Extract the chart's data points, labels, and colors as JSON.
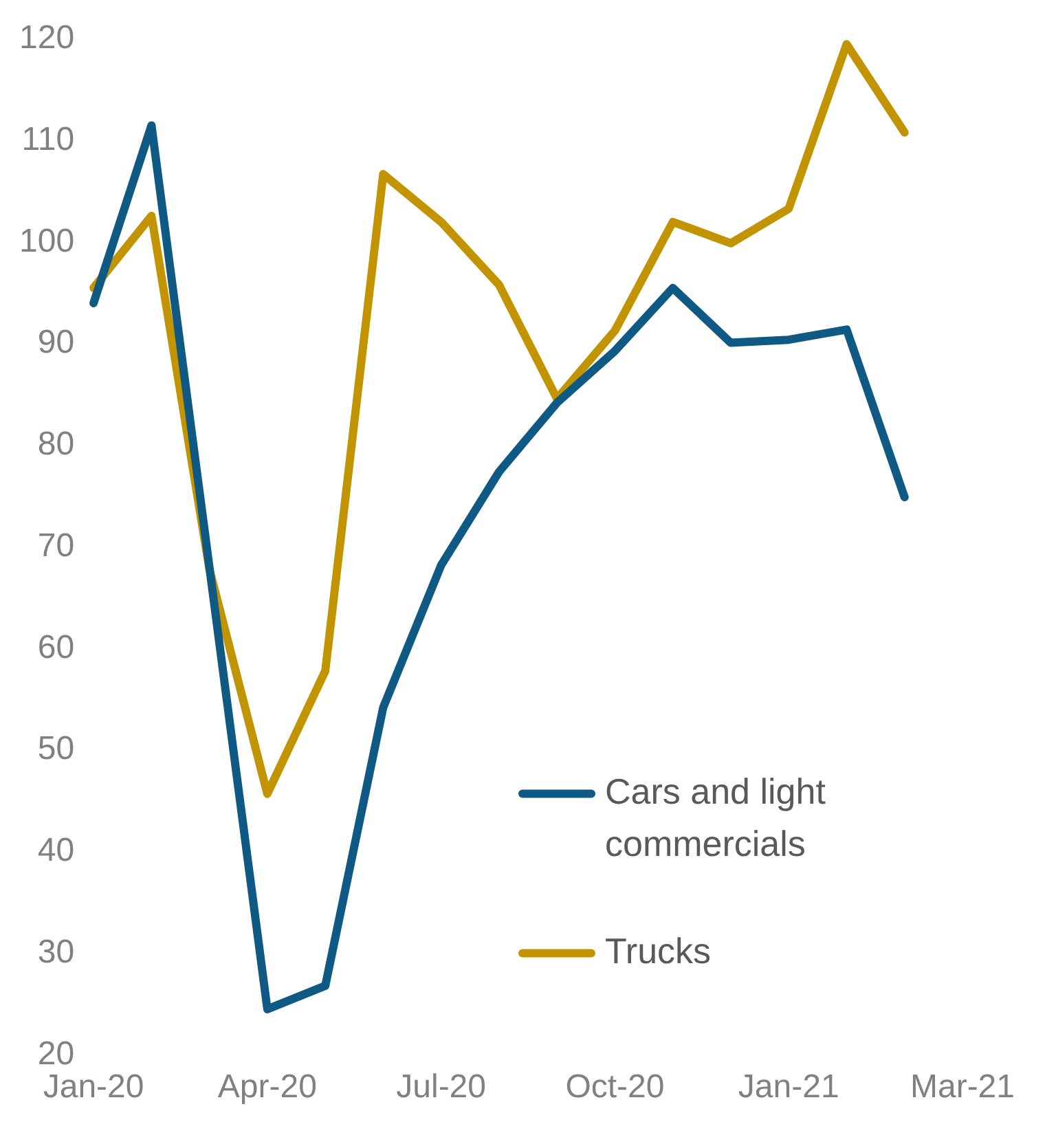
{
  "chart_data": {
    "type": "line",
    "categories": [
      "Jan-20",
      null,
      null,
      "Apr-20",
      null,
      null,
      "Jul-20",
      null,
      null,
      "Oct-20",
      null,
      null,
      "Jan-21",
      null,
      null,
      "Mar-21"
    ],
    "series": [
      {
        "name": "Cars and light commercials",
        "color": "#0e5a85",
        "values": [
          94,
          111.5,
          68,
          24.5,
          26.8,
          54.2,
          68.2,
          77.4,
          84.2,
          89.3,
          95.5,
          90.1,
          90.4,
          91.4,
          74.9,
          null
        ]
      },
      {
        "name": "Trucks",
        "color": "#c29400",
        "values": [
          95.5,
          102.6,
          67.8,
          45.7,
          57.8,
          106.7,
          102,
          95.8,
          84.6,
          91.3,
          102,
          99.9,
          103.3,
          119.5,
          110.8,
          null
        ]
      }
    ],
    "ylim": [
      20,
      120
    ],
    "yticks": [
      20,
      30,
      40,
      50,
      60,
      70,
      80,
      90,
      100,
      110,
      120
    ],
    "grid": false,
    "legend": "bottom right",
    "marker": "none",
    "line_style": "solid"
  }
}
